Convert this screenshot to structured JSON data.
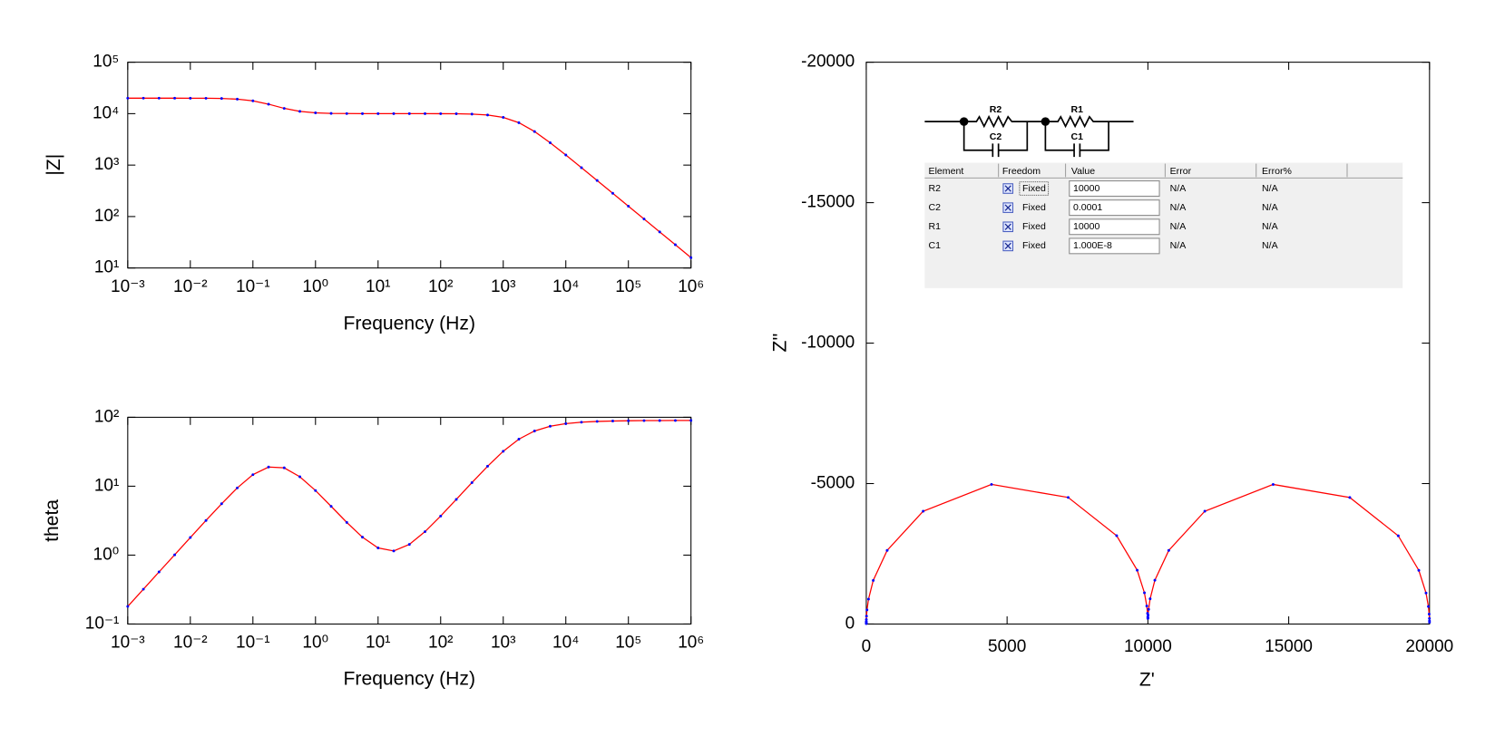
{
  "chart_data": [
    {
      "type": "line",
      "log_x": true,
      "log_y": true,
      "x_label": "Frequency (Hz)",
      "y_label": "|Z|",
      "x": [
        0.001,
        0.0017783,
        0.0031623,
        0.0056234,
        0.01,
        0.017783,
        0.031623,
        0.056234,
        0.1,
        0.17783,
        0.31623,
        0.56234,
        1,
        1.7783,
        3.1623,
        5.6234,
        10,
        17.783,
        31.623,
        56.234,
        100,
        177.83,
        316.23,
        562.34,
        1000,
        1778.3,
        3162.3,
        5623.4,
        10000,
        17783,
        31623,
        56234,
        100000,
        177830,
        316230,
        562340,
        1000000
      ],
      "series": [
        {
          "color": "#ff0000",
          "marker_color": "#0000ff",
          "values": [
            19999.7,
            19999.1,
            19997.0,
            19990.6,
            19970.5,
            19907.3,
            19713.1,
            19149.5,
            17750.8,
            15278.4,
            12674.1,
            11056.6,
            10364.8,
            10119.5,
            10038.9,
            10013.1,
            10004.6,
            10001.6,
            9999.4,
            9994.9,
            9981.3,
            9939.2,
            9809.2,
            9429.7,
            8468.2,
            6669.6,
            4496.2,
            2723.5,
            1571.9,
            891.5,
            502.7,
            282.9,
            159.1,
            89.5,
            50.3,
            28.3,
            15.9
          ]
        }
      ],
      "xlim": [
        0.001,
        1000000
      ],
      "xticks": [
        {
          "value": 0.001,
          "label": "10⁻³"
        },
        {
          "value": 0.01,
          "label": "10⁻²"
        },
        {
          "value": 0.1,
          "label": "10⁻¹"
        },
        {
          "value": 1,
          "label": "10⁰"
        },
        {
          "value": 10,
          "label": "10¹"
        },
        {
          "value": 100,
          "label": "10²"
        },
        {
          "value": 1000,
          "label": "10³"
        },
        {
          "value": 10000,
          "label": "10⁴"
        },
        {
          "value": 100000,
          "label": "10⁵"
        },
        {
          "value": 1000000,
          "label": "10⁶"
        }
      ],
      "ylim": [
        10,
        100000
      ],
      "yticks": [
        {
          "value": 10,
          "label": "10¹"
        },
        {
          "value": 100,
          "label": "10²"
        },
        {
          "value": 1000,
          "label": "10³"
        },
        {
          "value": 10000,
          "label": "10⁴"
        },
        {
          "value": 100000,
          "label": "10⁵"
        }
      ]
    },
    {
      "type": "line",
      "log_x": true,
      "log_y": true,
      "x_label": "Frequency (Hz)",
      "y_label": "theta",
      "x": [
        0.001,
        0.0017783,
        0.0031623,
        0.0056234,
        0.01,
        0.017783,
        0.031623,
        0.056234,
        0.1,
        0.17783,
        0.31623,
        0.56234,
        1,
        1.7783,
        3.1623,
        5.6234,
        10,
        17.783,
        31.623,
        56.234,
        100,
        177.83,
        316.23,
        562.34,
        1000,
        1778.3,
        3162.3,
        5623.4,
        10000,
        17783,
        31623,
        56234,
        100000,
        177830,
        316230,
        562340,
        1000000
      ],
      "series": [
        {
          "color": "#ff0000",
          "marker_color": "#0000ff",
          "values": [
            0.18,
            0.32,
            0.57,
            1.01,
            1.8,
            3.18,
            5.56,
            9.44,
            14.7,
            18.98,
            18.47,
            13.71,
            8.65,
            5.1,
            2.98,
            1.82,
            1.27,
            1.15,
            1.43,
            2.19,
            3.69,
            6.43,
            11.27,
            19.48,
            32.15,
            48.18,
            63.29,
            74.2,
            80.96,
            84.88,
            87.12,
            88.38,
            89.1,
            89.49,
            89.71,
            89.84,
            89.91
          ]
        }
      ],
      "xlim": [
        0.001,
        1000000
      ],
      "xticks": [
        {
          "value": 0.001,
          "label": "10⁻³"
        },
        {
          "value": 0.01,
          "label": "10⁻²"
        },
        {
          "value": 0.1,
          "label": "10⁻¹"
        },
        {
          "value": 1,
          "label": "10⁰"
        },
        {
          "value": 10,
          "label": "10¹"
        },
        {
          "value": 100,
          "label": "10²"
        },
        {
          "value": 1000,
          "label": "10³"
        },
        {
          "value": 10000,
          "label": "10⁴"
        },
        {
          "value": 100000,
          "label": "10⁵"
        },
        {
          "value": 1000000,
          "label": "10⁶"
        }
      ],
      "ylim": [
        0.1,
        100
      ],
      "yticks": [
        {
          "value": 0.1,
          "label": "10⁻¹"
        },
        {
          "value": 1,
          "label": "10⁰"
        },
        {
          "value": 10,
          "label": "10¹"
        },
        {
          "value": 100,
          "label": "10²"
        }
      ]
    },
    {
      "type": "line",
      "log_x": false,
      "log_y": false,
      "x_label": "Z'",
      "y_label": "Z''",
      "x": [
        19999.6,
        19998.75,
        19996.05,
        19987.5,
        19960.7,
        19876.7,
        19620.2,
        18890.1,
        17169.6,
        14447.6,
        12021.1,
        10741.6,
        10247,
        10079.5,
        10025.3,
        10008,
        10002.1,
        9999.6,
        9996.3,
        9987.6,
        9960.7,
        9876.7,
        9620.2,
        8890.1,
        7169.6,
        4447.6,
        2021.1,
        741.6,
        247,
        79.5,
        25.3,
        8,
        2.5,
        0.8,
        0.25,
        0.08,
        0.03
      ],
      "series": [
        {
          "color": "#ff0000",
          "marker_color": "#0000ff",
          "values": [
            -62.8,
            -111.7,
            -198.6,
            -352.9,
            -625.8,
            -1103.5,
            -1911.5,
            -3141.2,
            -4504.8,
            -4969.3,
            -4015.8,
            -2620.3,
            -1558.5,
            -899.1,
            -521.9,
            -318.1,
            -221.9,
            -201.2,
            -248.9,
            -381.2,
            -641.7,
            -1112.5,
            -1916.5,
            -3144,
            -4506.4,
            -4970.2,
            -4016.3,
            -2620.6,
            -1552.4,
            -888,
            -502.1,
            -282.8,
            -159.1,
            -89.5,
            -50.3,
            -28.3,
            -15.9
          ]
        }
      ],
      "xlim": [
        0,
        20000
      ],
      "xticks": [
        0,
        5000,
        10000,
        15000,
        20000
      ],
      "ylim": [
        0,
        -20000
      ],
      "yticks": [
        0,
        -5000,
        -10000,
        -15000,
        -20000
      ],
      "circuit_labels": [
        "R2",
        "C2",
        "R1",
        "C1"
      ],
      "table": {
        "columns": [
          "Element",
          "Freedom",
          "Value",
          "Error",
          "Error%"
        ],
        "rows": [
          [
            "R2",
            "Fixed",
            "10000",
            "N/A",
            "N/A"
          ],
          [
            "C2",
            "Fixed",
            "0.0001",
            "N/A",
            "N/A"
          ],
          [
            "R1",
            "Fixed",
            "10000",
            "N/A",
            "N/A"
          ],
          [
            "C1",
            "Fixed",
            "1.000E-8",
            "N/A",
            "N/A"
          ]
        ]
      }
    }
  ]
}
